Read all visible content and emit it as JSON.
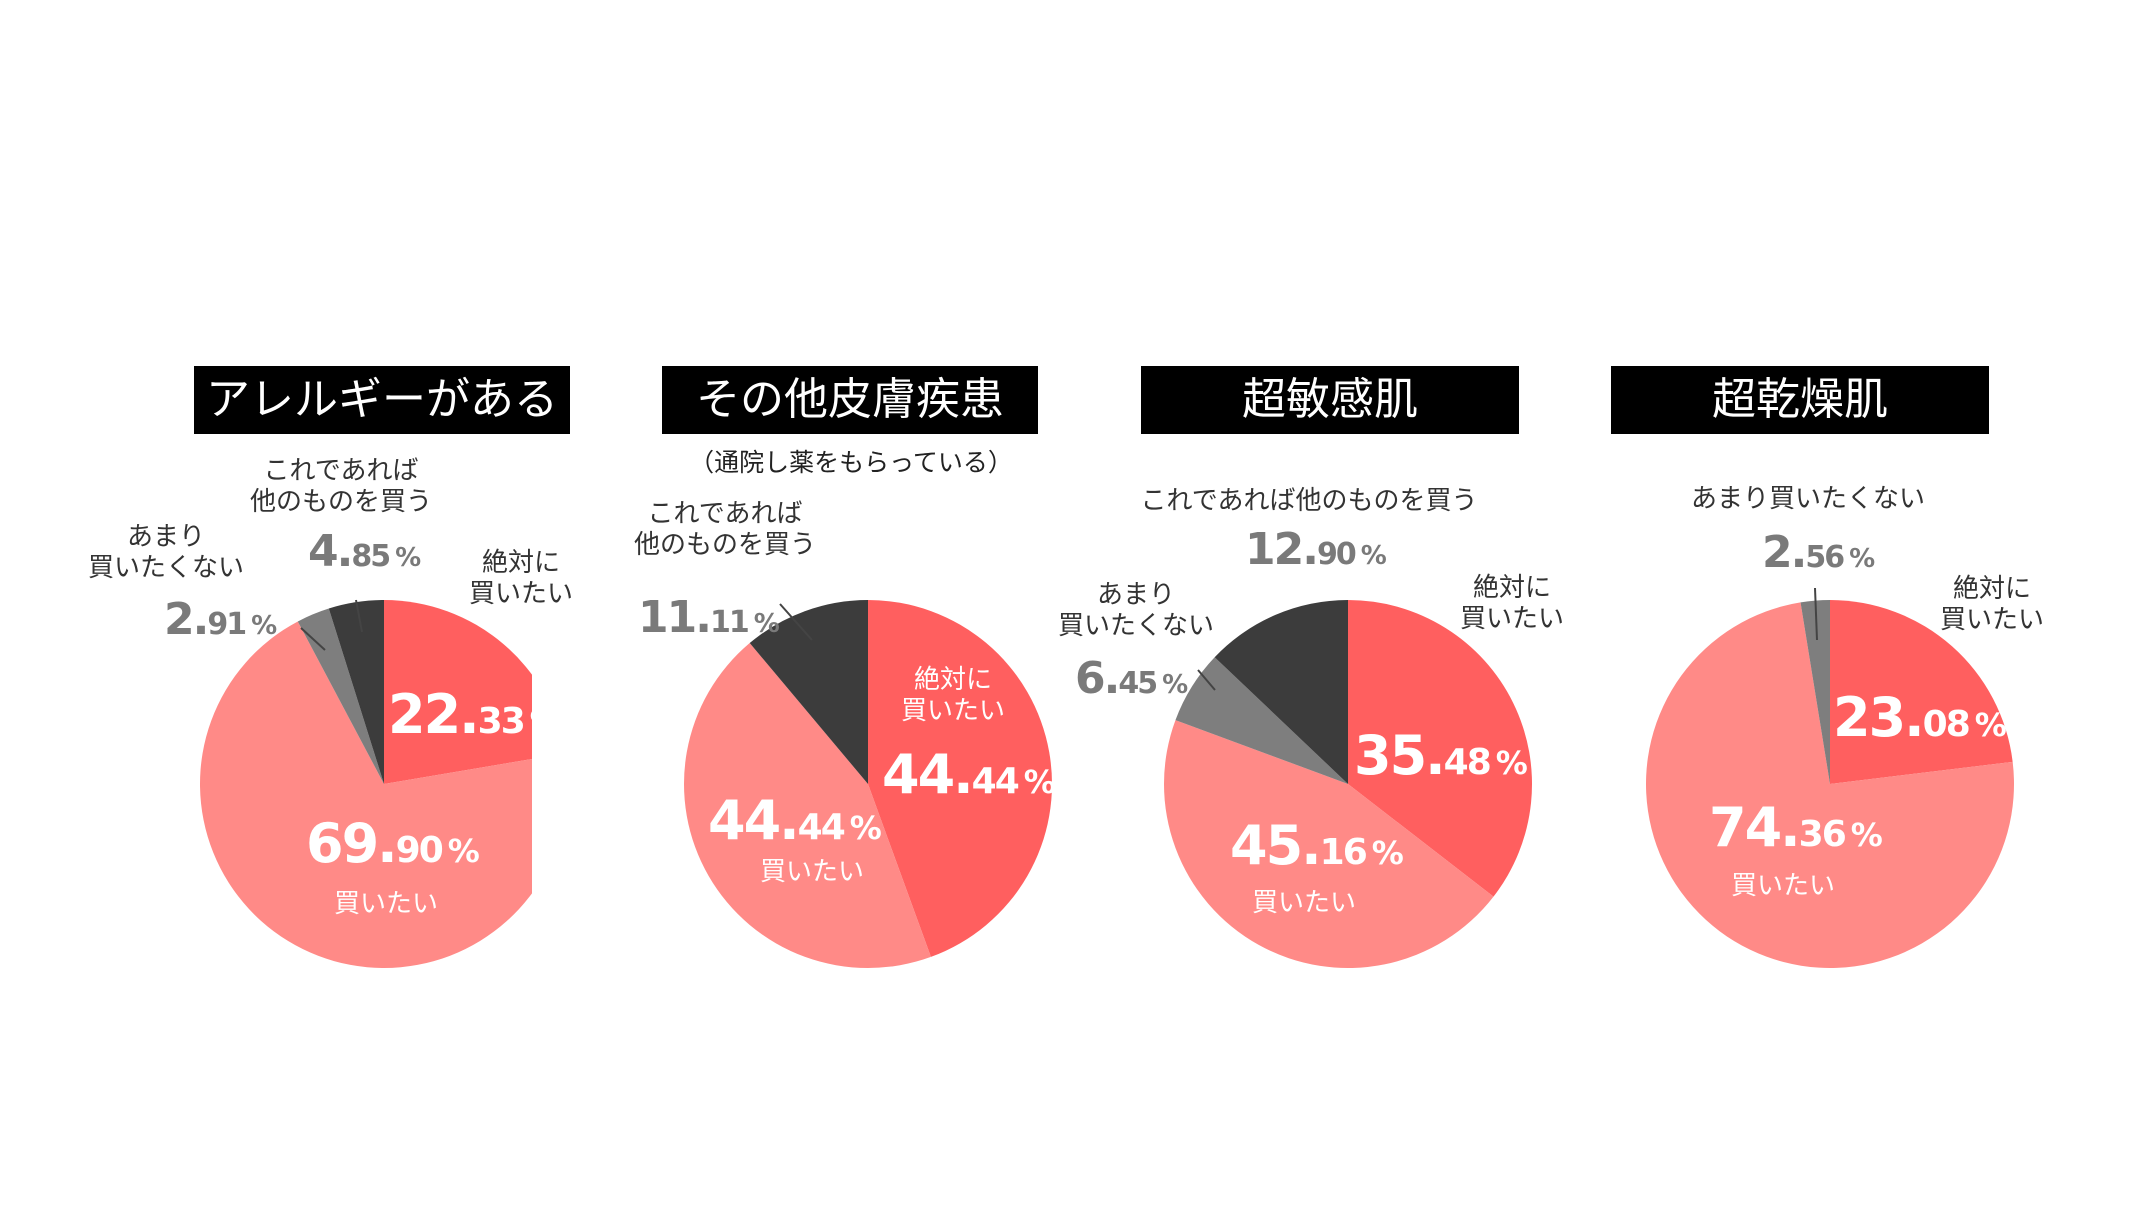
{
  "colors": {
    "zettai": "#ff5f5f",
    "kaitai": "#ff8a87",
    "amari": "#7e7e7e",
    "other": "#3c3c3c",
    "title_bg": "#000000",
    "title_fg": "#ffffff"
  },
  "chart_data": [
    {
      "type": "pie",
      "title": "アレルギーがある",
      "subtitle": "",
      "slices": [
        {
          "label": "絶対に\n買いたい",
          "pct_int": "22.",
          "pct_dec": "33",
          "value": 22.33
        },
        {
          "label": "買いたい",
          "pct_int": "69.",
          "pct_dec": "90",
          "value": 69.9
        },
        {
          "label": "あまり\n買いたくない",
          "pct_int": "2.",
          "pct_dec": "91",
          "value": 2.91
        },
        {
          "label": "これであれば\n他のものを買う",
          "pct_int": "4.",
          "pct_dec": "85",
          "value": 4.85
        }
      ]
    },
    {
      "type": "pie",
      "title": "その他皮膚疾患",
      "subtitle": "（通院し薬をもらっている）",
      "slices": [
        {
          "label": "絶対に\n買いたい",
          "pct_int": "44.",
          "pct_dec": "44",
          "value": 44.44
        },
        {
          "label": "買いたい",
          "pct_int": "44.",
          "pct_dec": "44",
          "value": 44.44
        },
        {
          "label": "これであれば\n他のものを買う",
          "pct_int": "11.",
          "pct_dec": "11",
          "value": 11.11
        }
      ]
    },
    {
      "type": "pie",
      "title": "超敏感肌",
      "subtitle": "",
      "slices": [
        {
          "label": "絶対に\n買いたい",
          "pct_int": "35.",
          "pct_dec": "48",
          "value": 35.48
        },
        {
          "label": "買いたい",
          "pct_int": "45.",
          "pct_dec": "16",
          "value": 45.16
        },
        {
          "label": "あまり\n買いたくない",
          "pct_int": "6.",
          "pct_dec": "45",
          "value": 6.45
        },
        {
          "label": "これであれば他のものを買う",
          "pct_int": "12.",
          "pct_dec": "90",
          "value": 12.9
        }
      ]
    },
    {
      "type": "pie",
      "title": "超乾燥肌",
      "subtitle": "",
      "slices": [
        {
          "label": "絶対に\n買いたい",
          "pct_int": "23.",
          "pct_dec": "08",
          "value": 23.08
        },
        {
          "label": "買いたい",
          "pct_int": "74.",
          "pct_dec": "36",
          "value": 74.36
        },
        {
          "label": "あまり買いたくない",
          "pct_int": "2.",
          "pct_dec": "56",
          "value": 2.56
        }
      ]
    }
  ]
}
